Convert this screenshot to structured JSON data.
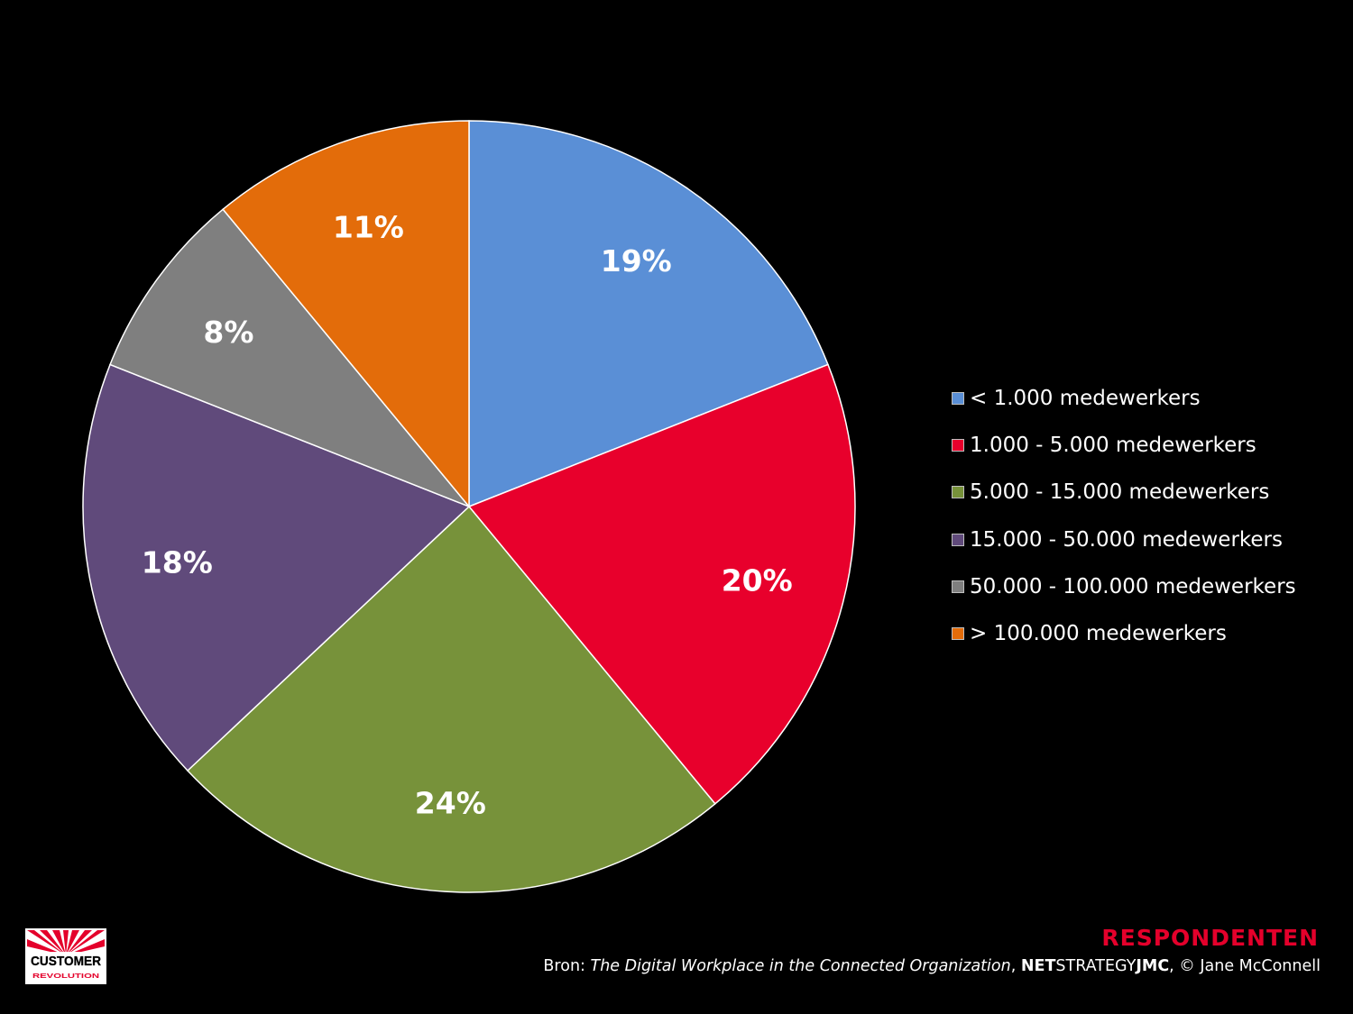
{
  "chart_data": {
    "type": "pie",
    "start_angle": "12 o'clock",
    "direction": "clockwise",
    "categories": [
      "< 1.000 medewerkers",
      "1.000 - 5.000 medewerkers",
      "5.000 - 15.000 medewerkers",
      "15.000 - 50.000 medewerkers",
      "50.000 - 100.000 medewerkers",
      "> 100.000 medewerkers"
    ],
    "values": [
      19,
      20,
      24,
      18,
      8,
      11
    ],
    "data_labels": [
      "19%",
      "20%",
      "24%",
      "18%",
      "8%",
      "11%"
    ],
    "colors": [
      "#5a8fd6",
      "#e8002c",
      "#77923a",
      "#604a7b",
      "#7f7f7f",
      "#e36c0a"
    ],
    "legend_placement": "right"
  },
  "footer": {
    "title": "RESPONDENTEN",
    "source_prefix": "Bron: ",
    "source_title": "The Digital Workplace in the Connected Organization",
    "source_sep": ", ",
    "source_net": "NET",
    "source_strategy": "STRATEGY",
    "source_jmc": "JMC",
    "source_suffix": ", © Jane McConnell"
  },
  "logo": {
    "text": "CUSTOMER",
    "subtext": "REVOLUTION",
    "colors": {
      "red": "#e4002b",
      "white": "#ffffff"
    }
  }
}
